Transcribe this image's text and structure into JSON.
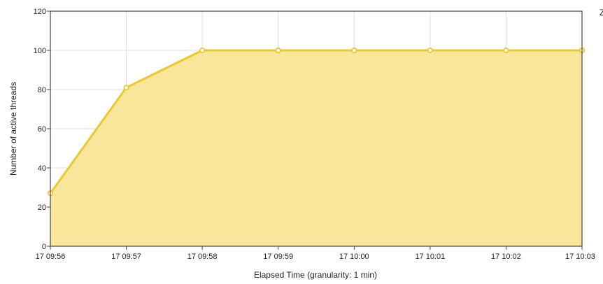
{
  "chart_data": {
    "type": "area",
    "title": "",
    "xlabel": "Elapsed Time (granularity: 1 min)",
    "ylabel": "Number of active threads",
    "categories": [
      "17 09:56",
      "17 09:57",
      "17 09:58",
      "17 09:59",
      "17 10:00",
      "17 10:01",
      "17 10:02",
      "17 10:03"
    ],
    "series": [
      {
        "values": [
          27,
          81,
          100,
          100,
          100,
          100,
          100,
          100
        ]
      }
    ],
    "ylim": [
      0,
      120
    ],
    "yticks": [
      "0",
      "20",
      "40",
      "60",
      "80",
      "100",
      "120"
    ],
    "grid": true,
    "legend_position": "right-clipped",
    "legend_fragment": "Z"
  },
  "colors": {
    "line": "#E9C832",
    "fill": "#F9E596",
    "marker_fill": "#FFFFFF",
    "grid": "#DDDDDD",
    "frame": "#444444"
  }
}
